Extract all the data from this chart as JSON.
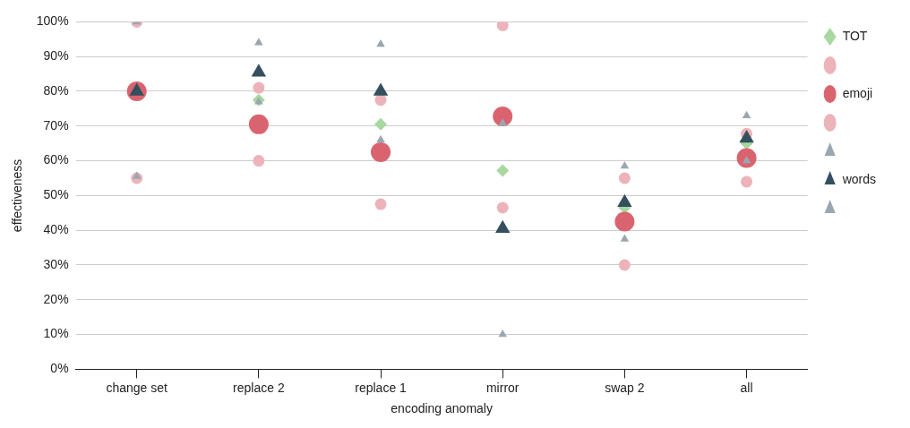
{
  "chart_data": {
    "type": "scatter",
    "xlabel": "encoding anomaly",
    "ylabel": "effectiveness",
    "categories": [
      "change set",
      "replace 2",
      "replace 1",
      "mirror",
      "swap 2",
      "all"
    ],
    "ylim": [
      0,
      100
    ],
    "yticks": [
      {
        "value": 0,
        "label": "0%"
      },
      {
        "value": 10,
        "label": "10%"
      },
      {
        "value": 20,
        "label": "20%"
      },
      {
        "value": 30,
        "label": "30%"
      },
      {
        "value": 40,
        "label": "40%"
      },
      {
        "value": 50,
        "label": "50%"
      },
      {
        "value": 60,
        "label": "60%"
      },
      {
        "value": 70,
        "label": "70%"
      },
      {
        "value": 80,
        "label": "80%"
      },
      {
        "value": 90,
        "label": "90%"
      },
      {
        "value": 100,
        "label": "100%"
      }
    ],
    "grid": "y",
    "legend": "right",
    "series": [
      {
        "name": "TOT",
        "color": "#a8d8a0",
        "marker": "diamond",
        "values": [
          null,
          77.5,
          70.5,
          57.2,
          46.5,
          65
        ]
      },
      {
        "color": "#ecb3ba",
        "marker": "circle",
        "values": [
          100,
          81,
          77.5,
          99,
          55,
          67.8
        ]
      },
      {
        "name": "emoji",
        "color": "#d9646f",
        "marker": "circle",
        "values": [
          80,
          70.5,
          62.5,
          72.8,
          42.5,
          60.8
        ]
      },
      {
        "color": "#ecb3ba",
        "marker": "circle",
        "values": [
          55,
          60,
          47.5,
          46.5,
          30,
          54
        ]
      },
      {
        "color": "#9aa7b1",
        "marker": "triangle",
        "values": [
          100,
          94,
          93.5,
          70.8,
          58.5,
          73
        ]
      },
      {
        "name": "words",
        "color": "#344f5e",
        "marker": "triangle",
        "values": [
          80,
          85.5,
          80,
          40.5,
          48,
          66.5
        ]
      },
      {
        "color": "#9aa7b1",
        "marker": "triangle",
        "values": [
          55.5,
          77,
          66,
          10,
          37.5,
          60
        ]
      }
    ]
  }
}
